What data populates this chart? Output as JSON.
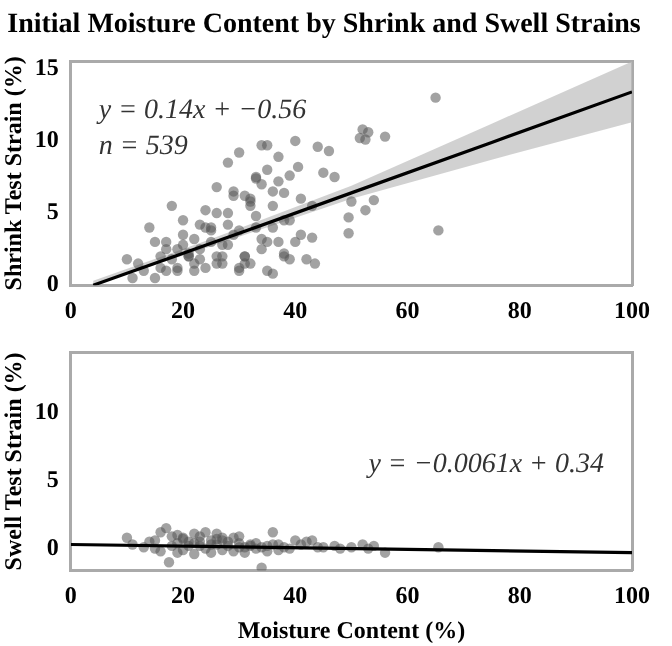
{
  "chart_data": [
    {
      "type": "scatter",
      "title": "Initial Moisture Content by Shrink and Swell Strains",
      "ylabel": "Shrink Test Strain (%)",
      "xlim": [
        0,
        100
      ],
      "xticks": [
        0,
        20,
        40,
        60,
        80,
        100
      ],
      "ylim": [
        0,
        15.5
      ],
      "yticks": [
        0,
        5,
        10,
        15
      ],
      "grid": false,
      "legend": false,
      "annotations": [
        "y = 0.14x + −0.56",
        "n = 539"
      ],
      "series": [
        {
          "color": "#555555",
          "marker": "circle",
          "x": [
            65,
            65.5,
            52,
            53,
            56,
            51.5,
            52.5,
            50,
            49.5,
            49.5,
            54,
            52.5,
            40,
            44,
            46,
            30,
            34,
            35,
            37,
            47,
            45,
            40.5,
            43,
            43,
            43.5,
            42,
            10,
            11,
            14,
            18,
            15,
            12,
            13,
            16,
            17,
            19,
            20,
            21,
            22,
            23,
            24,
            25,
            26,
            27,
            28,
            29,
            30,
            31,
            32,
            33,
            34,
            35,
            36,
            37,
            38,
            39,
            40,
            41,
            16,
            18,
            20,
            22,
            24,
            26,
            28,
            30,
            32,
            34,
            36,
            38,
            17,
            19,
            21,
            23,
            25,
            27,
            29,
            31,
            33,
            35,
            37,
            39,
            41,
            20,
            22,
            24,
            26,
            28,
            30,
            32,
            34,
            36,
            15,
            17,
            19,
            21,
            23,
            25,
            27,
            29,
            31,
            33,
            35,
            38,
            26,
            28,
            33,
            36,
            32,
            31,
            39,
            38
          ],
          "values": [
            13,
            3.8,
            10.8,
            10.6,
            10.3,
            10.2,
            10.1,
            5.8,
            4.7,
            3.6,
            5.9,
            5.2,
            10,
            9.6,
            9.3,
            9.2,
            9.7,
            9.7,
            8.9,
            7.5,
            7.8,
            8.2,
            5.5,
            3.3,
            1.5,
            1.8,
            1.8,
            0.5,
            4,
            5.5,
            0.5,
            1.5,
            1,
            2,
            3,
            2.5,
            3.5,
            2,
            1,
            2.5,
            4,
            3,
            1.5,
            2,
            5,
            3.5,
            1,
            2,
            6,
            4,
            2.5,
            1,
            5.5,
            3,
            2,
            4.5,
            3,
            6,
            1.2,
            1.8,
            4.5,
            3.2,
            1.2,
            5,
            2.8,
            3.8,
            1.5,
            7,
            4,
            2.2,
            2.5,
            1,
            2,
            4.2,
            3.8,
            1.5,
            6.2,
            2,
            4.8,
            3,
            7.2,
            1.8,
            3.5,
            2.8,
            1.5,
            5.2,
            2,
            4.2,
            1.2,
            5.5,
            3.2,
            0.8,
            3,
            1,
            1.2,
            2.2,
            1.8,
            4,
            2.8,
            6.5,
            1.5,
            7.5,
            8,
            4.5,
            6.8,
            8.5,
            7.4,
            6.5,
            5.8,
            6.2,
            7.6,
            6.4
          ]
        },
        {
          "type": "line",
          "color": "#000000",
          "x": [
            4,
            25,
            50,
            75,
            100
          ],
          "values": [
            0,
            2.9,
            6.4,
            9.9,
            13.4
          ],
          "lower": [
            0,
            2.7,
            6.0,
            8.7,
            11.3
          ],
          "upper": [
            0.3,
            3.2,
            6.9,
            11.2,
            15.5
          ]
        }
      ]
    },
    {
      "type": "scatter",
      "xlabel": "Moisture Content (%)",
      "ylabel": "Swell Test Strain (%)",
      "xlim": [
        0,
        100
      ],
      "xticks": [
        0,
        20,
        40,
        60,
        80,
        100
      ],
      "ylim": [
        -1.6,
        14.4
      ],
      "yticks": [
        0,
        5,
        10
      ],
      "grid": false,
      "legend": false,
      "annotations": [
        "y = −0.0061x + 0.34"
      ],
      "series": [
        {
          "color": "#555555",
          "marker": "circle",
          "x": [
            17,
            16,
            36,
            17.5,
            34,
            10,
            65.5,
            56,
            52,
            50,
            54,
            53,
            47,
            45,
            43,
            42,
            41,
            40,
            11,
            13,
            14,
            15,
            18,
            19,
            20,
            21,
            22,
            23,
            24,
            25,
            26,
            27,
            28,
            29,
            30,
            31,
            32,
            33,
            35,
            37,
            38,
            39,
            15,
            16,
            18,
            19,
            20,
            21,
            22,
            23,
            24,
            25,
            26,
            27,
            28,
            29,
            30,
            31,
            32,
            33,
            34,
            35,
            36,
            37,
            44,
            48,
            20,
            23,
            25,
            27,
            30,
            19,
            22,
            26
          ],
          "values": [
            1.5,
            1.2,
            1.2,
            -1,
            -1.4,
            0.8,
            0.1,
            -0.3,
            0.3,
            0.1,
            0.2,
            0,
            0.2,
            0.1,
            0.6,
            0.5,
            0.3,
            0.6,
            0.3,
            0.1,
            0.5,
            0.6,
            0.9,
            0.4,
            0.8,
            0.2,
            1.1,
            0.5,
            1.2,
            0.3,
            1.1,
            0.6,
            0.2,
            0.8,
            0.4,
            0.1,
            0.3,
            0,
            0.2,
            0.3,
            0.1,
            0,
            0,
            -0.2,
            0.2,
            -0.3,
            -0.1,
            0.5,
            -0.4,
            0.2,
            0,
            -0.3,
            0.3,
            -0.1,
            0.5,
            -0.2,
            0.1,
            -0.3,
            0.2,
            0.4,
            0.1,
            -0.2,
            0.3,
            -0.1,
            0.1,
            0,
            0.7,
            0.9,
            0.6,
            0.8,
            0.9,
            1,
            0.4,
            0.7
          ]
        },
        {
          "type": "line",
          "color": "#000000",
          "x": [
            0,
            100
          ],
          "values": [
            0.3,
            -0.3
          ]
        }
      ]
    }
  ]
}
